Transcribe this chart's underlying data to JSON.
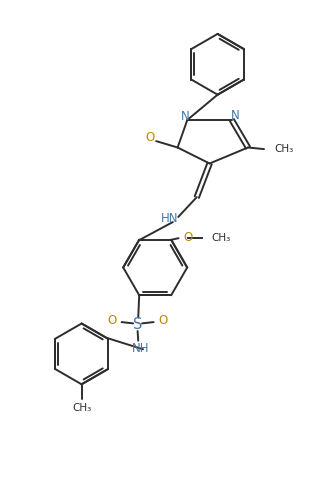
{
  "bg_color": "#ffffff",
  "line_color": "#2d2d2d",
  "N_color": "#4477aa",
  "O_color": "#bb8800",
  "S_color": "#4477aa",
  "figsize": [
    3.2,
    4.87
  ],
  "dpi": 100,
  "line_width": 1.4,
  "font_size": 8.5,
  "xlim": [
    0,
    10
  ],
  "ylim": [
    0,
    15.2
  ]
}
